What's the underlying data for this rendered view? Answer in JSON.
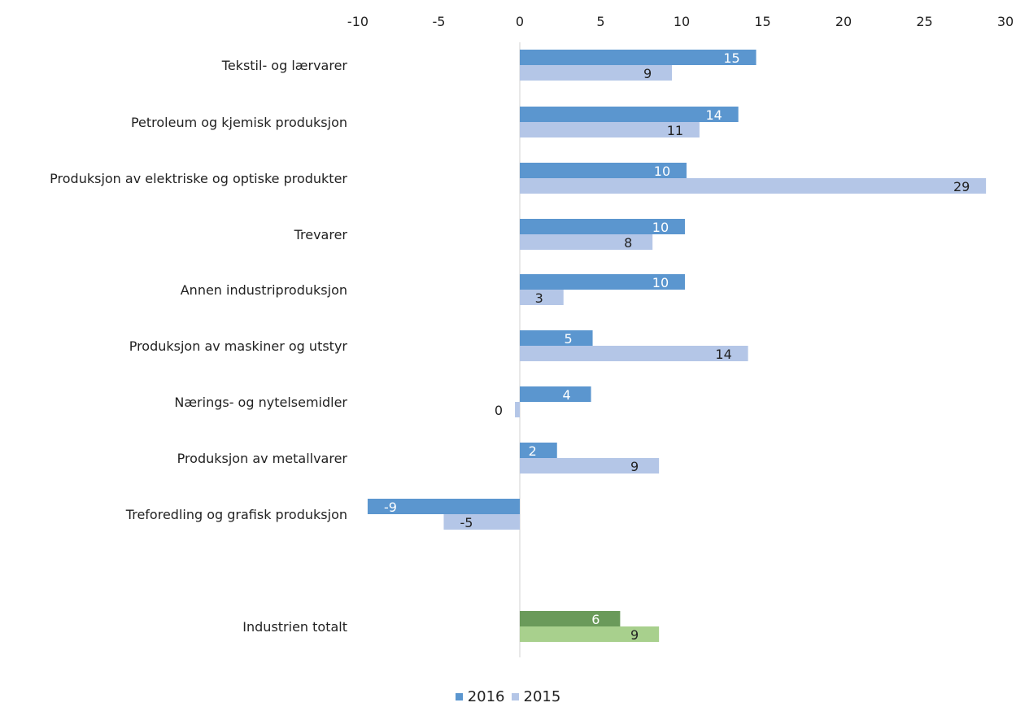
{
  "chart_data": {
    "type": "bar",
    "orientation": "horizontal",
    "categories": [
      "Tekstil- og lærvarer",
      "Petroleum og kjemisk produksjon",
      "Produksjon av elektriske og optiske produkter",
      "Trevarer",
      "Annen industriproduksjon",
      "Produksjon av maskiner og utstyr",
      "Nærings- og nytelsemidler",
      "Produksjon av metallvarer",
      "Treforedling og grafisk produksjon",
      "",
      "Industrien totalt"
    ],
    "series": [
      {
        "name": "2016",
        "values": [
          14.6,
          13.5,
          10.3,
          10.2,
          10.2,
          4.5,
          4.4,
          2.3,
          -9.4,
          null,
          6.2
        ],
        "labels": [
          "15",
          "14",
          "10",
          "10",
          "10",
          "5",
          "4",
          "2",
          "-9",
          "",
          "6"
        ],
        "color": "#5b96cf",
        "highlight_color": "#6a9a5a"
      },
      {
        "name": "2015",
        "values": [
          9.4,
          11.1,
          28.8,
          8.2,
          2.7,
          14.1,
          -0.3,
          8.6,
          -4.7,
          null,
          8.6
        ],
        "labels": [
          "9",
          "11",
          "29",
          "8",
          "3",
          "14",
          "0",
          "9",
          "-5",
          "",
          "9"
        ],
        "color": "#b4c6e7",
        "highlight_color": "#a8d08d"
      }
    ],
    "highlight_category_index": 10,
    "xticks": [
      "-10",
      "-5",
      "0",
      "5",
      "10",
      "15",
      "20",
      "25",
      "30"
    ],
    "xlim": [
      -10,
      30
    ],
    "title": "",
    "xlabel": "",
    "ylabel": "",
    "grid": false,
    "legend_position": "bottom"
  },
  "legend": {
    "series_1": "2016",
    "series_2": "2015"
  },
  "colors": {
    "series_1": "#5b96cf",
    "series_2": "#b4c6e7",
    "axis": "#d0d0d0"
  }
}
